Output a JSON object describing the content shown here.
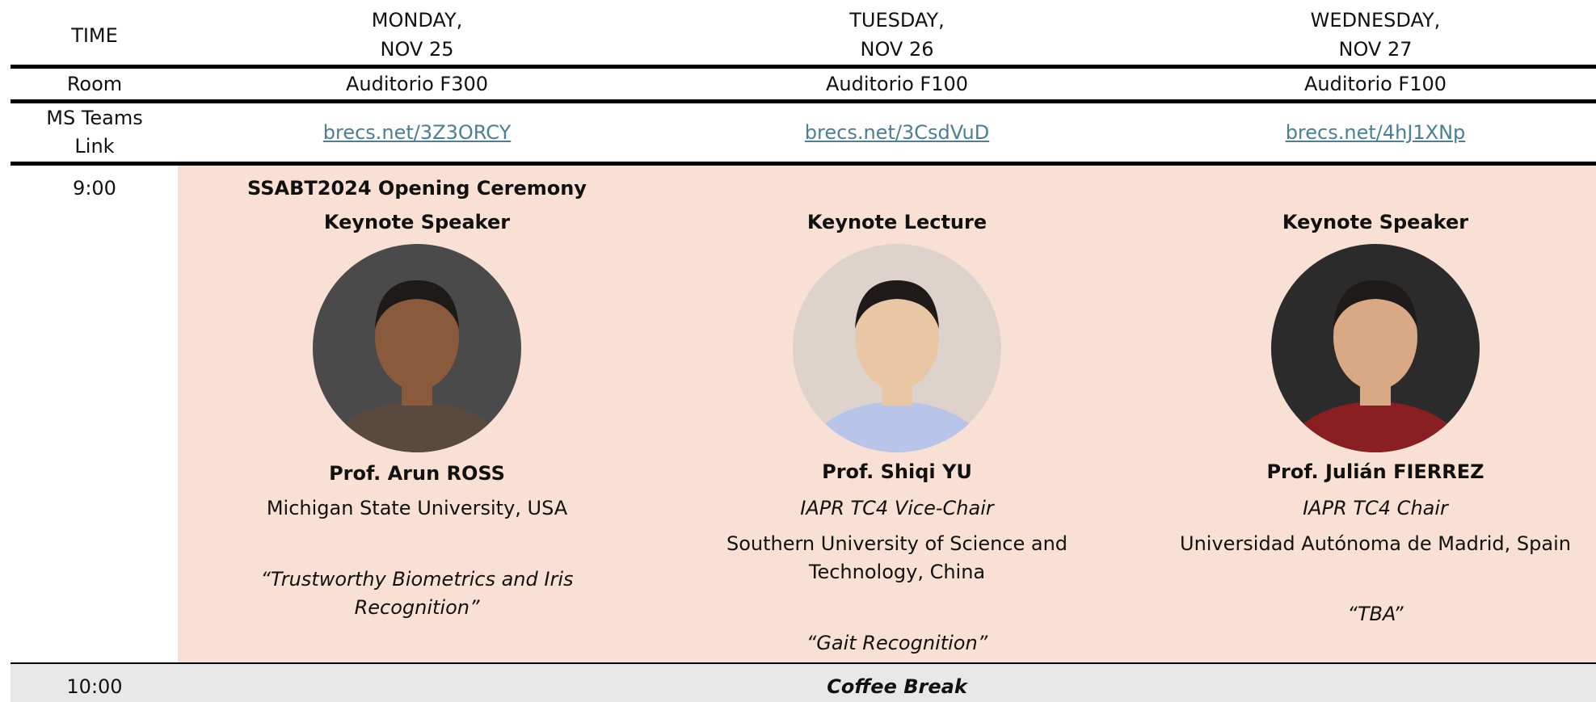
{
  "header": {
    "time": "TIME",
    "days": [
      {
        "weekday": "MONDAY,",
        "date": "NOV 25"
      },
      {
        "weekday": "TUESDAY,",
        "date": "NOV 26"
      },
      {
        "weekday": "WEDNESDAY,",
        "date": "NOV 27"
      }
    ]
  },
  "room": {
    "label": "Room",
    "values": [
      "Auditorio F300",
      "Auditorio F100",
      "Auditorio F100"
    ]
  },
  "teams": {
    "label": [
      "MS Teams",
      "Link"
    ],
    "links": [
      "brecs.net/3Z3ORCY",
      "brecs.net/3CsdVuD",
      "brecs.net/4hJ1XNp"
    ]
  },
  "session": {
    "time": "9:00",
    "opening": "SSABT2024 Opening Ceremony",
    "talks": [
      {
        "kind": "Keynote Speaker",
        "name": "Prof. Arun ROSS",
        "affiliation": [
          "Michigan State University, USA"
        ],
        "title": [
          "“Trustworthy Biometrics and Iris",
          "Recognition”"
        ]
      },
      {
        "kind": "Keynote Lecture",
        "name": "Prof. Shiqi YU",
        "role": "IAPR TC4 Vice-Chair",
        "affiliation": [
          "Southern University of Science and",
          "Technology, China"
        ],
        "title": [
          "“Gait Recognition”"
        ]
      },
      {
        "kind": "Keynote Speaker",
        "name": "Prof. Julián FIERREZ",
        "role": "IAPR TC4 Chair",
        "affiliation": [
          "Universidad Autónoma de Madrid, Spain"
        ],
        "title": [
          "“TBA”"
        ]
      }
    ]
  },
  "break": {
    "time": "10:00",
    "label": "Coffee Break"
  }
}
